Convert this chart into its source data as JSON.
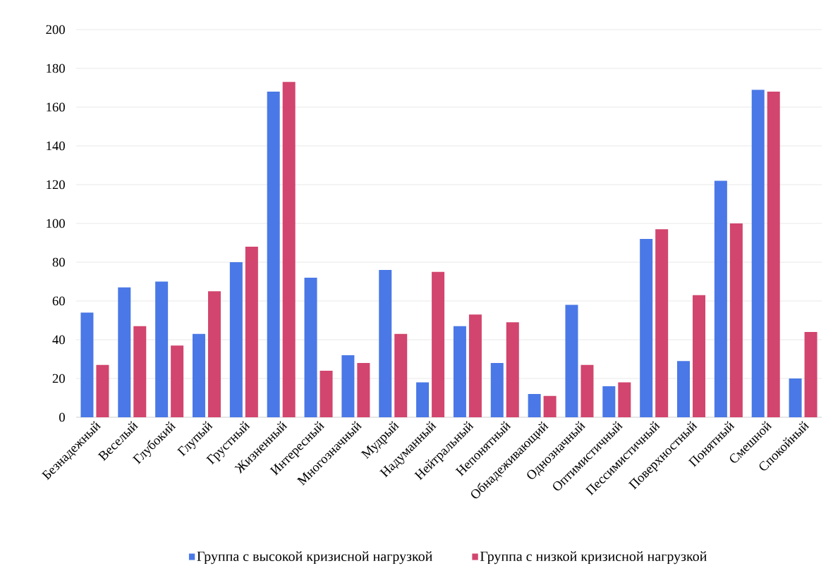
{
  "chart_data": {
    "type": "bar",
    "categories": [
      "Безнадежный",
      "Веселый",
      "Глубокий",
      "Глупый",
      "Грустный",
      "Жизненный",
      "Интересный",
      "Многозначный",
      "Мудрый",
      "Надуманный",
      "Нейтральный",
      "Непонятный",
      "Обнадеживающий",
      "Однозначный",
      "Оптимистичный",
      "Пессимистичный",
      "Поверхностный",
      "Понятный",
      "Смешной",
      "Спокойный"
    ],
    "series": [
      {
        "name": "Группа с высокой кризисной нагрузкой",
        "color": "#4a78e6",
        "values": [
          54,
          67,
          70,
          43,
          80,
          168,
          72,
          32,
          76,
          18,
          47,
          28,
          12,
          58,
          16,
          92,
          29,
          122,
          169,
          20
        ]
      },
      {
        "name": "Группа с низкой кризисной нагрузкой",
        "color": "#d2456e",
        "values": [
          27,
          47,
          37,
          65,
          88,
          173,
          24,
          28,
          43,
          75,
          53,
          49,
          11,
          27,
          18,
          97,
          63,
          100,
          168,
          44
        ]
      }
    ],
    "ylim": [
      0,
      200
    ],
    "yticks": [
      0,
      20,
      40,
      60,
      80,
      100,
      120,
      140,
      160,
      180,
      200
    ],
    "grid": "y",
    "legend": "bottom"
  }
}
